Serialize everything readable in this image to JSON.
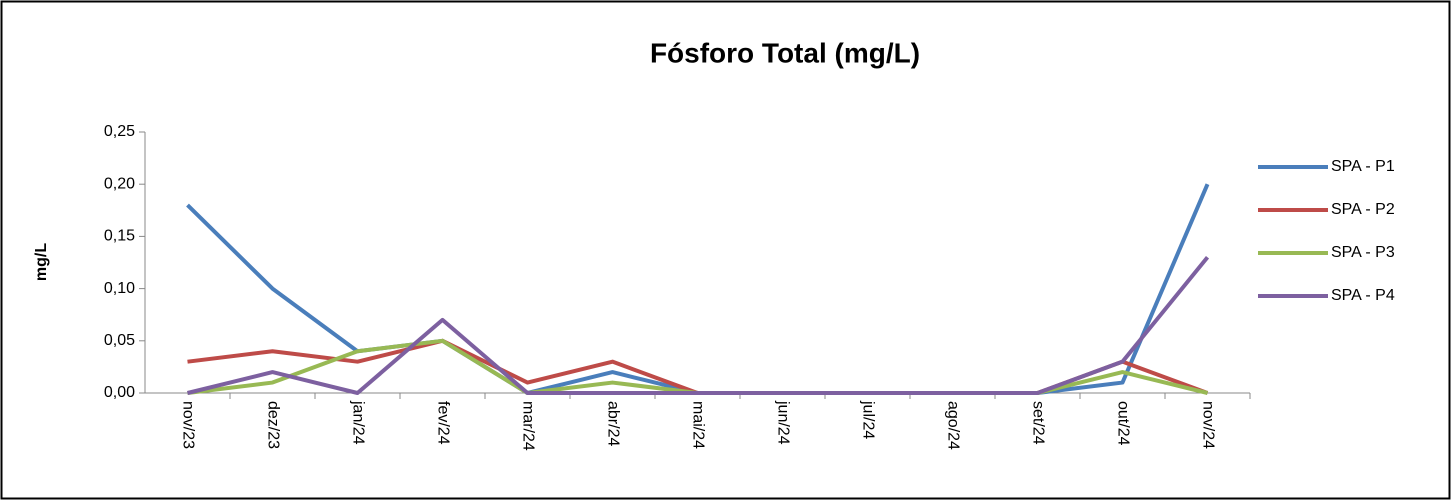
{
  "chart_data": {
    "type": "line",
    "title": "Fósforo Total (mg/L)",
    "y_label": "mg/L",
    "categories": [
      "nov/23",
      "dez/23",
      "jan/24",
      "fev/24",
      "mar/24",
      "abr/24",
      "mai/24",
      "jun/24",
      "jul/24",
      "ago/24",
      "set/24",
      "out/24",
      "nov/24"
    ],
    "series": [
      {
        "name": "SPA - P1",
        "color": "#4a7ebb",
        "values": [
          0.18,
          0.1,
          0.04,
          0.05,
          0.0,
          0.02,
          0,
          0,
          0,
          0,
          0,
          0.01,
          0.2
        ]
      },
      {
        "name": "SPA - P2",
        "color": "#be4b48",
        "values": [
          0.03,
          0.04,
          0.03,
          0.05,
          0.01,
          0.03,
          0,
          0,
          0,
          0,
          0,
          0.03,
          0.0
        ]
      },
      {
        "name": "SPA - P3",
        "color": "#98b954",
        "values": [
          0.0,
          0.01,
          0.04,
          0.05,
          0.0,
          0.01,
          0,
          0,
          0,
          0,
          0,
          0.02,
          0.0
        ]
      },
      {
        "name": "SPA - P4",
        "color": "#7d60a0",
        "values": [
          0.0,
          0.02,
          0.0,
          0.07,
          0.0,
          0.0,
          0,
          0,
          0,
          0,
          0,
          0.03,
          0.13
        ]
      }
    ],
    "ylim": [
      0,
      0.25
    ],
    "yticks": [
      {
        "value": 0,
        "label": "0,00"
      },
      {
        "value": 0.05,
        "label": "0,05"
      },
      {
        "value": 0.1,
        "label": "0,10"
      },
      {
        "value": 0.15,
        "label": "0,15"
      },
      {
        "value": 0.2,
        "label": "0,20"
      },
      {
        "value": 0.25,
        "label": "0,25"
      }
    ],
    "legend": "right"
  }
}
